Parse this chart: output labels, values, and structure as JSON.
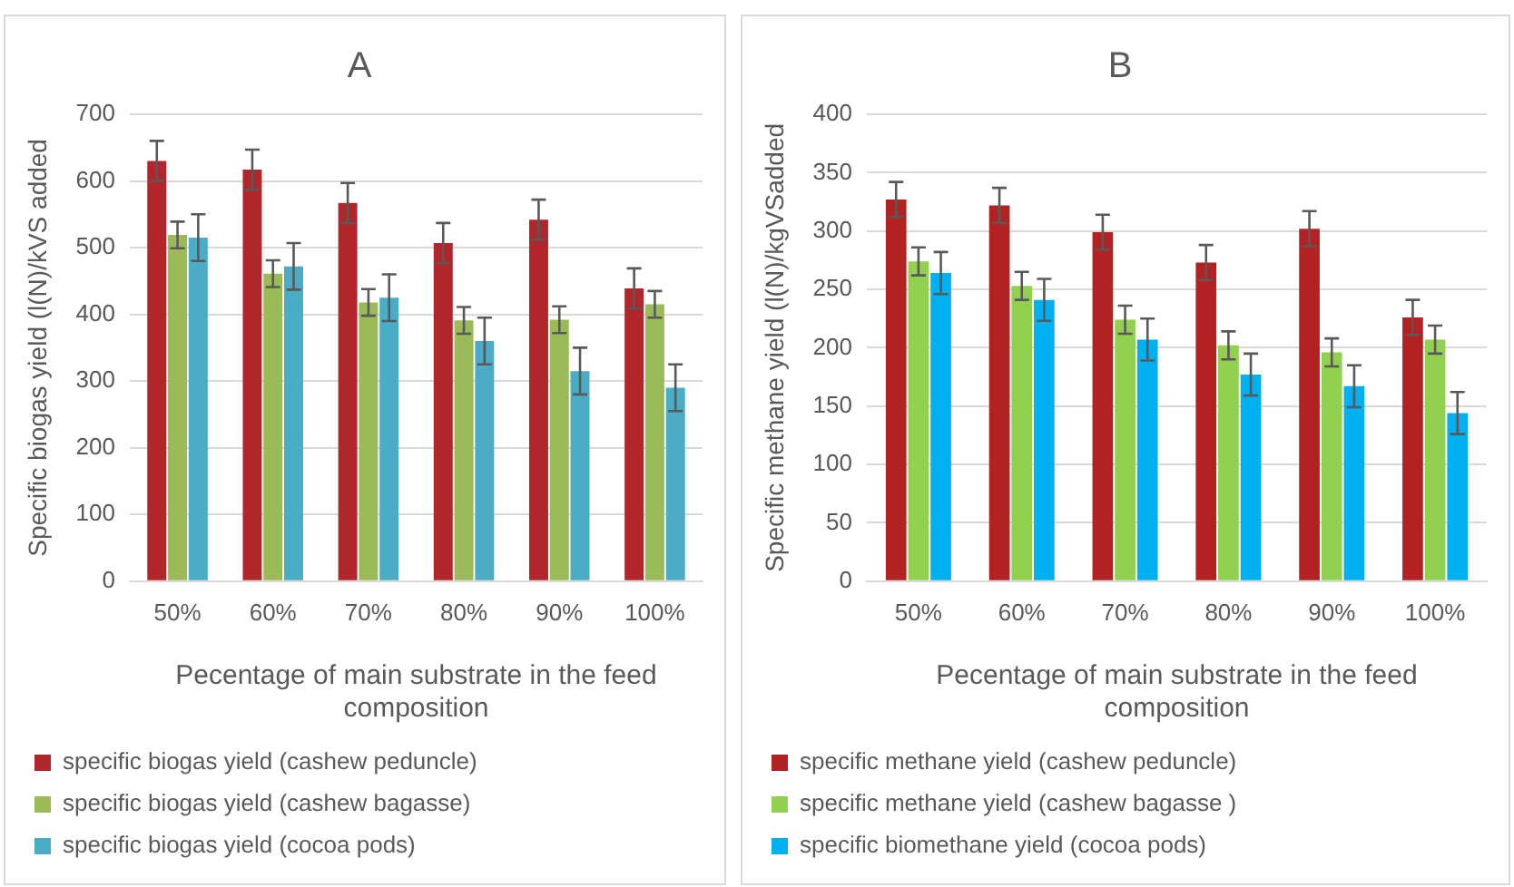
{
  "chart_data": [
    {
      "type": "bar",
      "title": "A",
      "xlabel": "Pecentage of main substrate in the feed composition",
      "ylabel": "Specific biogas yield (l(N)/kVS added",
      "categories": [
        "50%",
        "60%",
        "70%",
        "80%",
        "90%",
        "100%"
      ],
      "ylim": [
        0,
        700
      ],
      "yticks": [
        0,
        100,
        200,
        300,
        400,
        500,
        600,
        700
      ],
      "grid": "y",
      "legend": "bottom",
      "series": [
        {
          "name": "specific biogas yield (cashew peduncle)",
          "color": "#b0262a",
          "values": [
            630,
            617,
            567,
            507,
            542,
            439
          ],
          "errors": [
            30,
            30,
            30,
            30,
            30,
            30
          ]
        },
        {
          "name": "specific biogas yield (cashew bagasse)",
          "color": "#9bbb59",
          "values": [
            519,
            461,
            418,
            391,
            392,
            415
          ],
          "errors": [
            20,
            20,
            20,
            20,
            20,
            20
          ]
        },
        {
          "name": "specific biogas yield (cocoa pods)",
          "color": "#4bacc6",
          "values": [
            515,
            472,
            425,
            360,
            315,
            290
          ],
          "errors": [
            35,
            35,
            35,
            35,
            35,
            35
          ]
        }
      ]
    },
    {
      "type": "bar",
      "title": "B",
      "xlabel": "Pecentage of main substrate in the feed composition",
      "ylabel": "Specific methane yield (l(N)/kgVSadded",
      "categories": [
        "50%",
        "60%",
        "70%",
        "80%",
        "90%",
        "100%"
      ],
      "ylim": [
        0,
        400
      ],
      "yticks": [
        0,
        50,
        100,
        150,
        200,
        250,
        300,
        350,
        400
      ],
      "grid": "y",
      "legend": "bottom",
      "series": [
        {
          "name": "specific methane yield (cashew peduncle)",
          "color": "#b22222",
          "values": [
            327,
            322,
            299,
            273,
            302,
            226
          ],
          "errors": [
            15,
            15,
            15,
            15,
            15,
            15
          ]
        },
        {
          "name": "specific methane yield (cashew bagasse )",
          "color": "#92d050",
          "values": [
            274,
            253,
            224,
            202,
            196,
            207
          ],
          "errors": [
            12,
            12,
            12,
            12,
            12,
            12
          ]
        },
        {
          "name": "specific biomethane yield (cocoa pods)",
          "color": "#00b0f0",
          "values": [
            264,
            241,
            207,
            177,
            167,
            144
          ],
          "errors": [
            18,
            18,
            18,
            18,
            18,
            18
          ]
        }
      ]
    }
  ]
}
